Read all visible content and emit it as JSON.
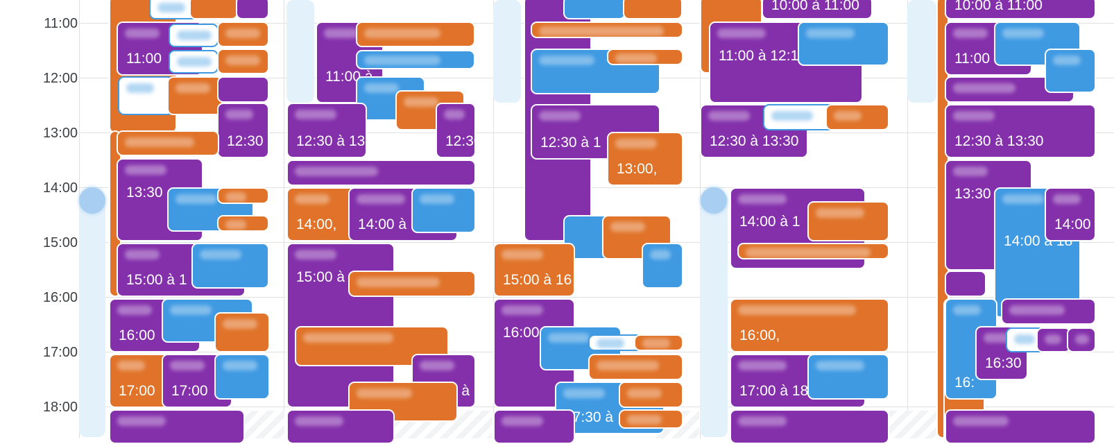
{
  "time_labels": [
    "11:00",
    "12:00",
    "13:00",
    "14:00",
    "15:00",
    "16:00",
    "17:00",
    "18:00"
  ],
  "colors": {
    "purple": "#8430ab",
    "orange": "#e07329",
    "blue": "#3f9ae2",
    "allday": "#e3f1fb"
  },
  "events": {
    "d1_11": "11:00",
    "d1_1230": "12:30",
    "d1_1330": "13:30",
    "d1_15": "15:00 à 1",
    "d1_16": "16:00",
    "d1_17a": "17:00",
    "d1_17b": "17:00",
    "d2_11": "11:00 à",
    "d2_1230": "12:30 à 13",
    "d2_1230b": "12:30",
    "d2_14a": "14:00,",
    "d2_14b": "14:00 à",
    "d2_15": "15:00 à",
    "d2_17": "17:00 à",
    "d3_1230": "12:30 à 1",
    "d3_13": "13:00,",
    "d3_15": "15:00 à 16",
    "d3_16": "16:00",
    "d3_1730": "17:30 à",
    "d4_top": "10:00 à 11:00",
    "d4_11": "11:00 à 12:1",
    "d4_1230": "12:30 à 13:30",
    "d4_14": "14:00 à 1",
    "d4_16": "16:00,",
    "d4_17": "17:00 à 18",
    "d5_top": "10:00 à 11:00",
    "d5_11": "11:00",
    "d5_1230": "12:30 à 13:30",
    "d5_1330": "13:30",
    "d5_14a": "14:00 à 18",
    "d5_14b": "14:00",
    "d5_16": "16:",
    "d5_1630": "16:30"
  }
}
